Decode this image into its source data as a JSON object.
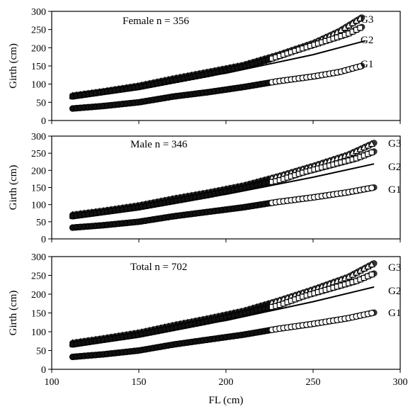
{
  "chart_data": [
    {
      "type": "scatter",
      "annotation": "Female n  = 356",
      "xlabel": "FL (cm)",
      "ylabel": "Girth (cm)",
      "xlim": [
        100,
        300
      ],
      "ylim": [
        0,
        300
      ],
      "xticks": [
        "100",
        "150",
        "200",
        "250",
        "300"
      ],
      "yticks": [
        "0",
        "50",
        "100",
        "150",
        "200",
        "250",
        "300"
      ],
      "series": [
        {
          "name": "G1",
          "marker": "circle",
          "points": [
            [
              112,
              33
            ],
            [
              130,
              40
            ],
            [
              150,
              50
            ],
            [
              170,
              66
            ],
            [
              190,
              78
            ],
            [
              210,
              92
            ],
            [
              230,
              108
            ],
            [
              250,
              121
            ],
            [
              265,
              133
            ],
            [
              278,
              150
            ]
          ]
        },
        {
          "name": "G2",
          "marker": "line",
          "points": [
            [
              112,
              66
            ],
            [
              150,
              92
            ],
            [
              200,
              130
            ],
            [
              250,
              181
            ],
            [
              280,
              219
            ]
          ]
        },
        {
          "name": "G3",
          "marker": "triangle",
          "points": [
            [
              112,
              68
            ],
            [
              130,
              80
            ],
            [
              150,
              95
            ],
            [
              170,
              115
            ],
            [
              190,
              133
            ],
            [
              210,
              152
            ],
            [
              230,
              180
            ],
            [
              250,
              212
            ],
            [
              265,
              245
            ],
            [
              278,
              283
            ]
          ]
        },
        {
          "name": "",
          "marker": "square",
          "points": [
            [
              112,
              66
            ],
            [
              150,
              92
            ],
            [
              170,
              110
            ],
            [
              190,
              128
            ],
            [
              210,
              148
            ],
            [
              225,
              168
            ],
            [
              240,
              192
            ],
            [
              255,
              215
            ],
            [
              270,
              238
            ],
            [
              278,
              257
            ]
          ]
        }
      ]
    },
    {
      "type": "scatter",
      "annotation": "Male n = 346",
      "xlabel": "FL (cm)",
      "ylabel": "Girth (cm)",
      "xlim": [
        100,
        300
      ],
      "ylim": [
        0,
        300
      ],
      "xticks": [
        "100",
        "150",
        "200",
        "250",
        "300"
      ],
      "yticks": [
        "0",
        "50",
        "100",
        "150",
        "200",
        "250",
        "300"
      ],
      "series": [
        {
          "name": "G1",
          "marker": "circle",
          "points": [
            [
              112,
              33
            ],
            [
              130,
              40
            ],
            [
              150,
              50
            ],
            [
              170,
              66
            ],
            [
              190,
              79
            ],
            [
              210,
              92
            ],
            [
              230,
              108
            ],
            [
              250,
              121
            ],
            [
              270,
              136
            ],
            [
              285,
              150
            ]
          ]
        },
        {
          "name": "G2",
          "marker": "line",
          "points": [
            [
              112,
              66
            ],
            [
              150,
              92
            ],
            [
              200,
              130
            ],
            [
              250,
              180
            ],
            [
              285,
              219
            ]
          ]
        },
        {
          "name": "G3",
          "marker": "triangle",
          "points": [
            [
              112,
              70
            ],
            [
              130,
              82
            ],
            [
              150,
              97
            ],
            [
              170,
              117
            ],
            [
              190,
              135
            ],
            [
              210,
              155
            ],
            [
              230,
              182
            ],
            [
              250,
              212
            ],
            [
              270,
              245
            ],
            [
              285,
              280
            ]
          ]
        },
        {
          "name": "",
          "marker": "square",
          "points": [
            [
              112,
              66
            ],
            [
              150,
              92
            ],
            [
              170,
              110
            ],
            [
              190,
              128
            ],
            [
              210,
              148
            ],
            [
              230,
              170
            ],
            [
              245,
              195
            ],
            [
              260,
              215
            ],
            [
              275,
              235
            ],
            [
              285,
              255
            ]
          ]
        }
      ]
    },
    {
      "type": "scatter",
      "annotation": "Total n = 702",
      "xlabel": "FL (cm)",
      "ylabel": "Girth (cm)",
      "xlim": [
        100,
        300
      ],
      "ylim": [
        0,
        300
      ],
      "xticks": [
        "100",
        "150",
        "200",
        "250",
        "300"
      ],
      "yticks": [
        "0",
        "50",
        "100",
        "150",
        "200",
        "250",
        "300"
      ],
      "series": [
        {
          "name": "G1",
          "marker": "circle",
          "points": [
            [
              112,
              33
            ],
            [
              130,
              40
            ],
            [
              150,
              50
            ],
            [
              170,
              66
            ],
            [
              190,
              79
            ],
            [
              210,
              92
            ],
            [
              230,
              108
            ],
            [
              250,
              121
            ],
            [
              270,
              136
            ],
            [
              285,
              151
            ]
          ]
        },
        {
          "name": "G2",
          "marker": "line",
          "points": [
            [
              112,
              66
            ],
            [
              150,
              92
            ],
            [
              200,
              130
            ],
            [
              250,
              180
            ],
            [
              285,
              219
            ]
          ]
        },
        {
          "name": "G3",
          "marker": "triangle",
          "points": [
            [
              112,
              70
            ],
            [
              130,
              82
            ],
            [
              150,
              97
            ],
            [
              170,
              117
            ],
            [
              190,
              135
            ],
            [
              210,
              155
            ],
            [
              230,
              182
            ],
            [
              250,
              212
            ],
            [
              270,
              245
            ],
            [
              285,
              282
            ]
          ]
        },
        {
          "name": "",
          "marker": "square",
          "points": [
            [
              112,
              66
            ],
            [
              150,
              92
            ],
            [
              170,
              110
            ],
            [
              190,
              128
            ],
            [
              210,
              148
            ],
            [
              230,
              170
            ],
            [
              245,
              195
            ],
            [
              260,
              215
            ],
            [
              275,
              235
            ],
            [
              285,
              255
            ]
          ]
        }
      ]
    }
  ],
  "shared_xlabel": "FL (cm)"
}
